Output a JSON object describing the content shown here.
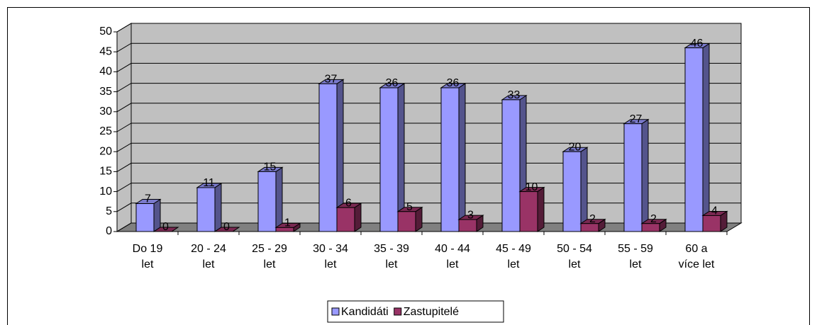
{
  "chart_data": {
    "type": "bar3d",
    "categories": [
      "Do 19 let",
      "20 - 24 let",
      "25 - 29 let",
      "30 - 34 let",
      "35 - 39 let",
      "40 - 44 let",
      "45 - 49 let",
      "50 - 54 let",
      "55 - 59 let",
      "60 a více let"
    ],
    "series": [
      {
        "name": "Kandidáti",
        "color": "#9999ff",
        "values": [
          7,
          11,
          15,
          37,
          36,
          36,
          33,
          20,
          27,
          46
        ]
      },
      {
        "name": "Zastupitelé",
        "color": "#993366",
        "values": [
          0,
          0,
          1,
          6,
          5,
          3,
          10,
          2,
          2,
          4
        ]
      }
    ],
    "ylim": [
      0,
      50
    ],
    "yticks": [
      0,
      5,
      10,
      15,
      20,
      25,
      30,
      35,
      40,
      45,
      50
    ],
    "grid": true,
    "legend": "bottom"
  }
}
